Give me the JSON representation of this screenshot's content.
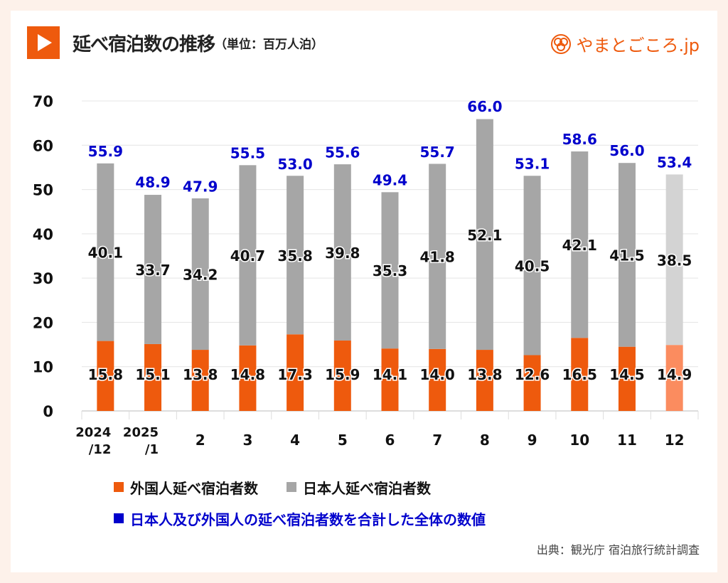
{
  "header": {
    "title": "延べ宿泊数の推移",
    "unit": "（単位：百万人泊）",
    "logo": "やまとごころ.jp"
  },
  "source": "出典：観光庁 宿泊旅行統計調査",
  "colors": {
    "foreign": "#ee5a0d",
    "japanese": "#a6a6a6",
    "foreign_light": "#fb8c5f",
    "japanese_light": "#d3d3d3",
    "total": "#0000cc",
    "accent": "#ee5a0d"
  },
  "chart_data": {
    "type": "bar",
    "stacked": true,
    "title": "延べ宿泊数の推移",
    "ylabel": "百万人泊",
    "ylim": [
      0,
      70
    ],
    "yticks": [
      0,
      10,
      20,
      30,
      40,
      50,
      60,
      70
    ],
    "grid": true,
    "categories": [
      [
        "2024",
        "/12"
      ],
      [
        "2025",
        "/1"
      ],
      [
        "2"
      ],
      [
        "3"
      ],
      [
        "4"
      ],
      [
        "5"
      ],
      [
        "6"
      ],
      [
        "7"
      ],
      [
        "8"
      ],
      [
        "9"
      ],
      [
        "10"
      ],
      [
        "11"
      ],
      [
        "12"
      ]
    ],
    "series": [
      {
        "name": "外国人延べ宿泊者数",
        "values": [
          15.8,
          15.1,
          13.8,
          14.8,
          17.3,
          15.9,
          14.1,
          14.0,
          13.8,
          12.6,
          16.5,
          14.5,
          14.9
        ]
      },
      {
        "name": "日本人延べ宿泊者数",
        "values": [
          40.1,
          33.7,
          34.2,
          40.7,
          35.8,
          39.8,
          35.3,
          41.8,
          52.1,
          40.5,
          42.1,
          41.5,
          38.5
        ]
      }
    ],
    "totals": {
      "name": "日本人及び外国人の延べ宿泊者数を合計した全体の数値",
      "values": [
        55.9,
        48.9,
        47.9,
        55.5,
        53.0,
        55.6,
        49.4,
        55.7,
        66.0,
        53.1,
        58.6,
        56.0,
        53.4
      ]
    },
    "preliminary_index": 12,
    "legend": "bottom"
  }
}
